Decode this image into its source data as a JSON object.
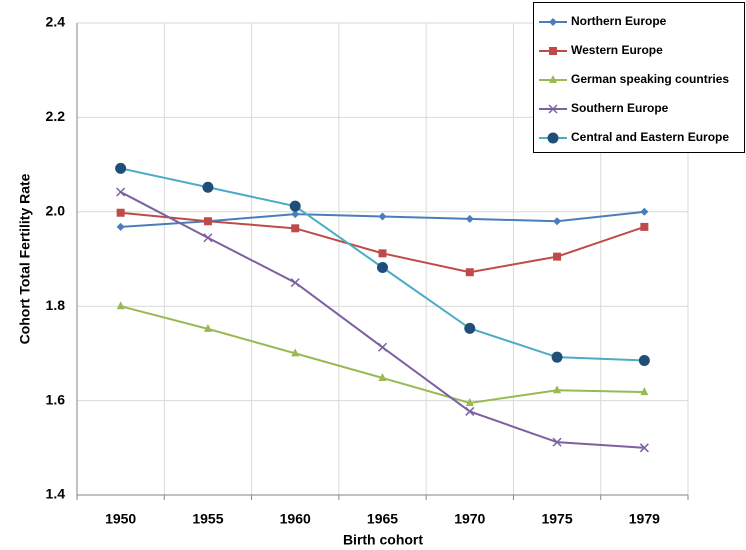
{
  "chart_data": {
    "type": "line",
    "x_label": "Birth cohort",
    "y_label": "Cohort Total Fertility Rate",
    "categories": [
      "1950",
      "1955",
      "1960",
      "1965",
      "1970",
      "1975",
      "1979"
    ],
    "ylim": [
      1.4,
      2.4
    ],
    "yticks": [
      1.4,
      1.6,
      1.8,
      {
        "value": 2,
        "label": "2.0"
      },
      2.2,
      2.4
    ],
    "grid": true,
    "legend": "top-right",
    "series": [
      {
        "name": "Northern Europe",
        "color": "#4a7ebb",
        "marker": "diamond",
        "values": [
          1.968,
          1.98,
          1.995,
          1.99,
          1.985,
          1.98,
          2.0
        ]
      },
      {
        "name": "Western Europe",
        "color": "#be4b48",
        "marker": "square",
        "values": [
          1.998,
          1.98,
          1.965,
          1.912,
          1.872,
          1.905,
          1.968
        ]
      },
      {
        "name": "German speaking countries",
        "color": "#98b954",
        "marker": "triangle",
        "values": [
          1.8,
          1.752,
          1.7,
          1.648,
          1.595,
          1.622,
          1.618
        ]
      },
      {
        "name": "Southern Europe",
        "color": "#7d60a0",
        "marker": "x",
        "values": [
          2.042,
          1.945,
          1.85,
          1.713,
          1.577,
          1.512,
          1.5
        ]
      },
      {
        "name": "Central and Eastern Europe",
        "color": "#4bacc6",
        "marker_color": "#1f4e79",
        "marker": "circle",
        "values": [
          2.092,
          2.052,
          2.012,
          1.882,
          1.753,
          1.692,
          1.685
        ]
      }
    ]
  }
}
